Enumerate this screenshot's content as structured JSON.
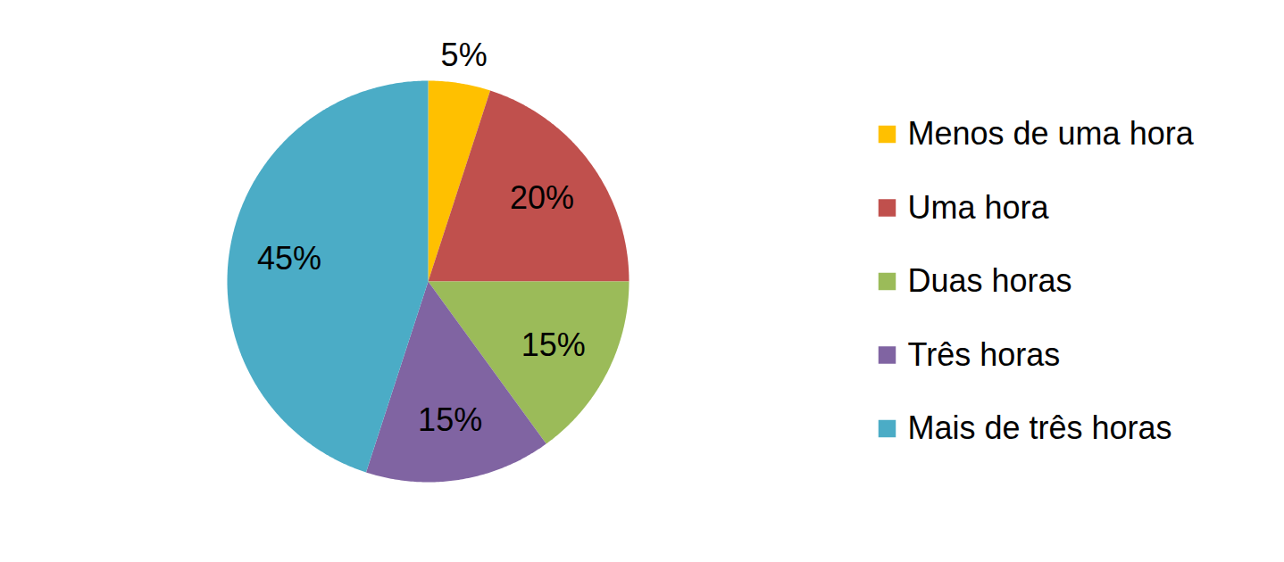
{
  "chart_data": {
    "type": "pie",
    "categories": [
      "Menos de uma hora",
      "Uma hora",
      "Duas horas",
      "Três horas",
      "Mais de três horas"
    ],
    "values": [
      5,
      20,
      15,
      15,
      45
    ],
    "value_labels": [
      "5%",
      "20%",
      "15%",
      "15%",
      "45%"
    ],
    "colors": [
      "#FFC000",
      "#C0504D",
      "#9BBB59",
      "#8064A2",
      "#4BACC6"
    ],
    "data_labels": true,
    "legend": "right"
  }
}
